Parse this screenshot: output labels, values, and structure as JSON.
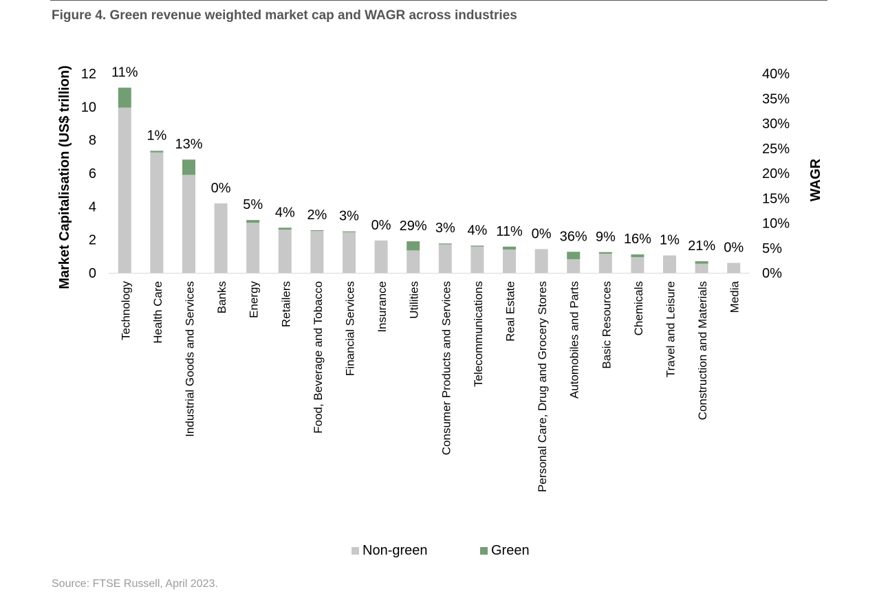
{
  "figure": {
    "title": "Figure 4. Green revenue weighted market cap and WAGR across industries",
    "source": "Source: FTSE Russell, April 2023."
  },
  "colors": {
    "non_green": "#c8c8c8",
    "green": "#739e73"
  },
  "chart_data": {
    "type": "bar",
    "stacked": true,
    "categories": [
      "Technology",
      "Health Care",
      "Industrial Goods and Services",
      "Banks",
      "Energy",
      "Retailers",
      "Food, Beverage and Tobacco",
      "Financial Services",
      "Insurance",
      "Utilities",
      "Consumer Products and Services",
      "Telecommunications",
      "Real Estate",
      "Personal Care, Drug and Grocery Stores",
      "Automobiles and Parts",
      "Basic Resources",
      "Chemicals",
      "Travel and Leisure",
      "Construction and Materials",
      "Media"
    ],
    "series": [
      {
        "name": "Non-green",
        "values": [
          9.95,
          7.25,
          5.9,
          4.18,
          3.02,
          2.6,
          2.52,
          2.45,
          1.95,
          1.35,
          1.72,
          1.58,
          1.4,
          1.43,
          0.82,
          1.15,
          0.95,
          1.05,
          0.55,
          0.6
        ]
      },
      {
        "name": "Green",
        "values": [
          1.2,
          0.1,
          0.92,
          0.0,
          0.16,
          0.12,
          0.05,
          0.05,
          0.0,
          0.55,
          0.05,
          0.06,
          0.18,
          0.0,
          0.45,
          0.1,
          0.16,
          0.0,
          0.15,
          0.0
        ]
      }
    ],
    "wagr_labels": [
      "11%",
      "1%",
      "13%",
      "0%",
      "5%",
      "4%",
      "2%",
      "3%",
      "0%",
      "29%",
      "3%",
      "4%",
      "11%",
      "0%",
      "36%",
      "9%",
      "16%",
      "1%",
      "21%",
      "0%"
    ],
    "ylabel": "Market Capitalisation (US$ trillion)",
    "ylim": [
      0,
      12
    ],
    "yticks": [
      "0",
      "2",
      "4",
      "6",
      "8",
      "10",
      "12"
    ],
    "y2label": "WAGR",
    "y2lim": [
      0,
      40
    ],
    "y2ticks": [
      "0%",
      "5%",
      "10%",
      "15%",
      "20%",
      "25%",
      "30%",
      "35%",
      "40%"
    ],
    "grid": false,
    "legend_position": "bottom"
  }
}
